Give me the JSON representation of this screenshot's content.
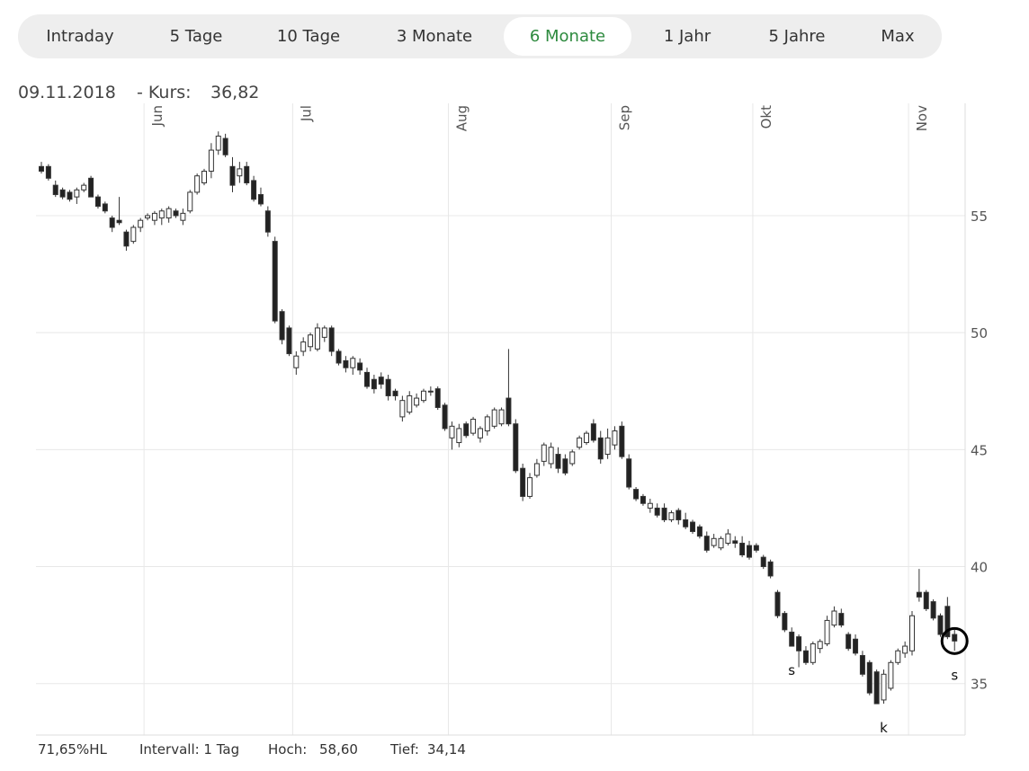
{
  "tabs": {
    "items": [
      "Intraday",
      "5 Tage",
      "10 Tage",
      "3 Monate",
      "6 Monate",
      "1 Jahr",
      "5 Jahre",
      "Max"
    ],
    "active": "6 Monate"
  },
  "info": {
    "date": "09.11.2018",
    "label": "- Kurs:",
    "price": "36,82"
  },
  "footer": {
    "hl": "71,65%HL",
    "interval": "Intervall: 1 Tag",
    "high_label": "Hoch:",
    "high": "58,60",
    "low_label": "Tief:",
    "low": "34,14"
  },
  "chart_data": {
    "type": "candlestick",
    "categories": [
      null,
      null,
      null,
      null,
      null,
      null,
      null,
      null,
      null,
      null,
      null,
      null,
      null,
      null,
      null,
      null,
      null,
      null,
      null,
      null,
      null,
      null,
      null,
      null,
      null,
      null,
      null,
      null,
      null,
      null,
      null,
      null,
      null,
      null,
      null,
      null,
      null,
      null,
      null,
      null,
      null,
      null,
      null,
      null,
      null,
      null,
      null,
      null,
      null,
      null,
      null,
      null,
      null,
      null,
      null,
      null,
      null,
      null,
      null,
      null,
      null,
      null,
      null,
      null,
      null,
      null,
      null,
      null,
      null,
      null,
      null,
      null,
      null,
      null,
      null,
      null,
      null,
      null,
      null,
      null,
      null,
      null,
      null,
      null,
      null,
      null,
      null,
      null,
      null,
      null,
      null,
      null,
      null,
      null,
      null,
      null,
      null,
      null,
      null,
      null,
      null,
      null,
      null,
      null,
      null,
      null,
      null,
      null,
      null,
      null,
      null,
      null,
      null,
      null,
      null,
      null,
      null,
      null,
      null,
      null,
      null,
      null,
      null,
      null,
      null,
      null,
      null,
      null,
      null,
      null
    ],
    "open": [
      57.1,
      57.1,
      56.3,
      56.1,
      56.0,
      55.8,
      56.1,
      56.6,
      55.8,
      55.5,
      54.9,
      54.8,
      54.3,
      53.9,
      54.5,
      54.9,
      54.8,
      54.9,
      54.9,
      55.2,
      54.8,
      55.2,
      56.0,
      56.4,
      56.9,
      57.8,
      58.3,
      57.1,
      56.7,
      57.1,
      56.5,
      55.9,
      55.2,
      53.9,
      50.9,
      50.2,
      48.5,
      49.2,
      49.4,
      49.3,
      49.8,
      50.2,
      49.2,
      48.8,
      48.5,
      48.7,
      48.3,
      48.0,
      48.1,
      48.0,
      47.5,
      46.4,
      46.6,
      46.9,
      47.1,
      47.5,
      47.6,
      46.9,
      45.5,
      45.3,
      46.1,
      45.7,
      45.5,
      45.8,
      46.0,
      46.1,
      47.2,
      46.1,
      44.2,
      43.0,
      43.9,
      44.5,
      44.4,
      44.8,
      44.6,
      44.4,
      45.1,
      45.3,
      46.1,
      45.5,
      44.8,
      45.2,
      46.0,
      44.6,
      43.3,
      43.0,
      42.5,
      42.5,
      42.5,
      42.0,
      42.4,
      42.0,
      41.9,
      41.7,
      41.3,
      40.9,
      40.8,
      41.0,
      41.1,
      41.0,
      40.9,
      40.9,
      40.4,
      40.2,
      38.9,
      38.0,
      37.2,
      37.0,
      36.4,
      35.9,
      36.5,
      36.7,
      37.5,
      38.0,
      37.1,
      36.9,
      36.2,
      35.9,
      35.5,
      34.3,
      34.8,
      35.9,
      36.3,
      36.4,
      38.9,
      38.9,
      38.5,
      37.9,
      38.3,
      37.1
    ],
    "high": [
      57.3,
      57.2,
      56.5,
      56.2,
      56.1,
      56.2,
      56.4,
      56.7,
      55.9,
      55.6,
      55.0,
      55.8,
      54.4,
      54.6,
      54.9,
      55.1,
      55.2,
      55.3,
      55.4,
      55.3,
      55.3,
      56.1,
      56.8,
      57.0,
      58.1,
      58.6,
      58.5,
      57.5,
      57.3,
      57.3,
      56.7,
      56.2,
      55.4,
      54.1,
      51.0,
      50.3,
      49.2,
      49.8,
      50.0,
      50.4,
      50.3,
      50.3,
      49.3,
      49.0,
      49.0,
      48.9,
      48.5,
      48.2,
      48.3,
      48.2,
      47.6,
      47.3,
      47.5,
      47.4,
      47.6,
      47.7,
      47.7,
      47.0,
      46.2,
      46.1,
      46.2,
      46.4,
      46.0,
      46.5,
      46.8,
      46.8,
      49.3,
      46.3,
      44.4,
      44.0,
      44.6,
      45.3,
      45.3,
      45.1,
      44.8,
      45.0,
      45.6,
      45.8,
      46.3,
      45.8,
      45.9,
      46.0,
      46.2,
      44.8,
      43.4,
      43.1,
      42.9,
      42.7,
      42.7,
      42.4,
      42.5,
      42.3,
      42.0,
      41.8,
      41.5,
      41.4,
      41.3,
      41.6,
      41.3,
      41.3,
      41.1,
      41.0,
      40.5,
      40.3,
      39.0,
      38.1,
      37.4,
      37.1,
      36.6,
      36.8,
      36.9,
      37.9,
      38.3,
      38.2,
      37.2,
      37.1,
      36.4,
      36.0,
      35.6,
      35.6,
      36.0,
      36.5,
      36.8,
      38.1,
      39.9,
      39.0,
      38.6,
      38.0,
      38.7,
      37.3
    ],
    "low": [
      56.8,
      56.5,
      55.8,
      55.7,
      55.6,
      55.5,
      56.0,
      55.8,
      55.3,
      55.1,
      54.3,
      54.6,
      53.5,
      53.8,
      54.3,
      54.8,
      54.6,
      54.6,
      54.7,
      54.9,
      54.6,
      55.1,
      55.9,
      56.3,
      56.6,
      57.6,
      57.5,
      56.0,
      56.4,
      56.3,
      55.6,
      55.4,
      54.1,
      50.4,
      49.5,
      49.0,
      48.2,
      49.0,
      49.2,
      49.2,
      49.6,
      49.0,
      48.6,
      48.3,
      48.2,
      48.2,
      47.6,
      47.4,
      47.6,
      47.1,
      47.1,
      46.2,
      46.5,
      46.8,
      47.0,
      47.3,
      46.7,
      45.8,
      45.0,
      45.1,
      45.5,
      45.6,
      45.3,
      45.6,
      45.9,
      46.0,
      46.0,
      44.0,
      42.8,
      42.9,
      43.8,
      44.3,
      44.2,
      44.0,
      43.9,
      44.3,
      45.0,
      45.2,
      45.3,
      44.4,
      44.6,
      45.0,
      44.6,
      43.3,
      42.8,
      42.6,
      42.3,
      42.1,
      41.9,
      41.9,
      41.8,
      41.6,
      41.4,
      41.2,
      40.6,
      40.8,
      40.7,
      40.9,
      40.8,
      40.4,
      40.3,
      40.6,
      39.9,
      39.5,
      37.8,
      37.2,
      36.6,
      35.7,
      35.8,
      35.8,
      36.3,
      36.6,
      37.4,
      37.4,
      36.4,
      36.2,
      35.3,
      34.5,
      34.14,
      34.14,
      34.7,
      35.8,
      36.1,
      36.2,
      38.5,
      38.1,
      37.7,
      37.0,
      36.9,
      36.4
    ],
    "close": [
      56.9,
      56.6,
      55.9,
      55.8,
      55.7,
      56.1,
      56.3,
      55.8,
      55.4,
      55.2,
      54.5,
      54.7,
      53.7,
      54.5,
      54.8,
      55.0,
      55.1,
      55.2,
      55.3,
      55.0,
      55.1,
      56.0,
      56.7,
      56.9,
      57.8,
      58.4,
      57.6,
      56.3,
      57.0,
      56.4,
      55.7,
      55.5,
      54.3,
      50.5,
      49.7,
      49.1,
      49.0,
      49.6,
      49.9,
      50.2,
      50.2,
      49.2,
      48.7,
      48.5,
      48.9,
      48.4,
      47.7,
      47.6,
      47.8,
      47.3,
      47.3,
      47.1,
      47.3,
      47.2,
      47.5,
      47.5,
      46.8,
      45.9,
      46.0,
      45.9,
      45.6,
      46.3,
      45.9,
      46.4,
      46.7,
      46.7,
      46.1,
      44.1,
      43.0,
      43.8,
      44.4,
      45.2,
      45.1,
      44.2,
      44.0,
      44.9,
      45.5,
      45.7,
      45.4,
      44.6,
      45.5,
      45.8,
      44.7,
      43.4,
      42.9,
      42.7,
      42.7,
      42.2,
      42.0,
      42.3,
      42.0,
      41.7,
      41.5,
      41.3,
      40.7,
      41.2,
      41.2,
      41.4,
      41.0,
      40.5,
      40.4,
      40.7,
      40.0,
      39.6,
      37.9,
      37.3,
      36.6,
      36.4,
      35.9,
      36.7,
      36.8,
      37.7,
      38.1,
      37.5,
      36.5,
      36.3,
      35.4,
      34.6,
      34.14,
      35.4,
      35.9,
      36.4,
      36.6,
      37.9,
      38.7,
      38.2,
      37.8,
      37.1,
      37.0,
      36.82
    ],
    "ylim": [
      32.8,
      59.8
    ],
    "yticks": [
      35,
      40,
      45,
      50,
      55
    ],
    "xticks": [
      {
        "value": 14.5,
        "label": "Jun"
      },
      {
        "value": 35.5,
        "label": "Jul"
      },
      {
        "value": 57.5,
        "label": "Aug"
      },
      {
        "value": 80.5,
        "label": "Sep"
      },
      {
        "value": 100.5,
        "label": "Okt"
      },
      {
        "value": 122.5,
        "label": "Nov"
      }
    ],
    "grid": true,
    "up_color": "#ffffff",
    "down_color": "#222222",
    "annotations": [
      {
        "label": "s",
        "index": 106
      },
      {
        "label": "k",
        "index": 119
      },
      {
        "label": "s",
        "index": 129
      }
    ]
  }
}
